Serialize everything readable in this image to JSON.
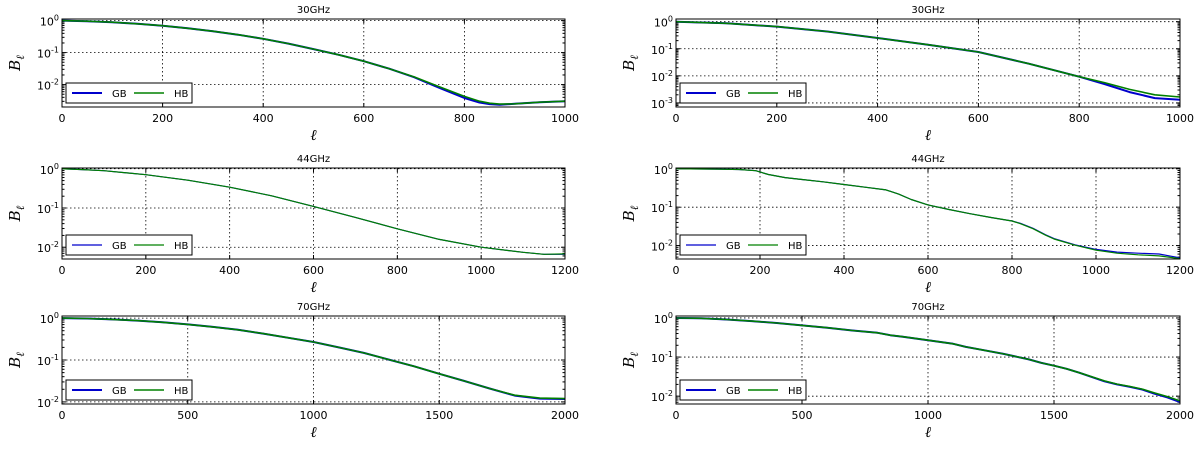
{
  "charts": [
    {
      "type": "line",
      "title": "30GHz",
      "xlabel": "ℓ",
      "ylabel": "Bℓ",
      "xlim": [
        0,
        1000
      ],
      "ylim_log10": [
        -2.7,
        0.05
      ],
      "xticks": [
        0,
        200,
        400,
        600,
        800,
        1000
      ],
      "yticks_log10": [
        -2,
        -1,
        0
      ],
      "ytick_labels": [
        "10^-2",
        "10^-1",
        "10^0"
      ],
      "legend": [
        "GB",
        "HB"
      ],
      "series": [
        {
          "name": "GB",
          "color": "#0000cc",
          "width": 2,
          "x": [
            0,
            50,
            100,
            150,
            200,
            250,
            300,
            350,
            400,
            450,
            500,
            550,
            600,
            650,
            700,
            750,
            800,
            830,
            850,
            870,
            900,
            950,
            1000
          ],
          "log10_y": [
            0,
            -0.02,
            -0.05,
            -0.1,
            -0.16,
            -0.24,
            -0.33,
            -0.44,
            -0.57,
            -0.72,
            -0.89,
            -1.07,
            -1.27,
            -1.5,
            -1.77,
            -2.1,
            -2.42,
            -2.56,
            -2.61,
            -2.63,
            -2.6,
            -2.55,
            -2.52
          ]
        },
        {
          "name": "HB",
          "color": "#008000",
          "width": 1.6,
          "x": [
            0,
            50,
            100,
            150,
            200,
            250,
            300,
            350,
            400,
            450,
            500,
            550,
            600,
            650,
            700,
            750,
            800,
            830,
            850,
            870,
            900,
            950,
            1000
          ],
          "log10_y": [
            0,
            -0.02,
            -0.05,
            -0.1,
            -0.16,
            -0.24,
            -0.33,
            -0.44,
            -0.57,
            -0.72,
            -0.89,
            -1.07,
            -1.27,
            -1.5,
            -1.76,
            -2.07,
            -2.37,
            -2.52,
            -2.58,
            -2.61,
            -2.6,
            -2.55,
            -2.52
          ]
        }
      ]
    },
    {
      "type": "line",
      "title": "30GHz",
      "xlabel": "ℓ",
      "ylabel": "Bℓ",
      "xlim": [
        0,
        1000
      ],
      "ylim_log10": [
        -3.15,
        0.1
      ],
      "xticks": [
        0,
        200,
        400,
        600,
        800,
        1000
      ],
      "yticks_log10": [
        -3,
        -2,
        -1,
        0
      ],
      "ytick_labels": [
        "10^-3",
        "10^-2",
        "10^-1",
        "10^0"
      ],
      "legend": [
        "GB",
        "HB"
      ],
      "series": [
        {
          "name": "GB",
          "color": "#0000cc",
          "width": 2,
          "x": [
            0,
            100,
            200,
            300,
            400,
            500,
            600,
            700,
            800,
            850,
            900,
            950,
            1000
          ],
          "log10_y": [
            0,
            -0.06,
            -0.18,
            -0.36,
            -0.6,
            -0.85,
            -1.12,
            -1.55,
            -2.03,
            -2.3,
            -2.6,
            -2.82,
            -2.88
          ]
        },
        {
          "name": "HB",
          "color": "#008000",
          "width": 1.6,
          "x": [
            0,
            100,
            200,
            300,
            400,
            500,
            600,
            700,
            800,
            850,
            900,
            950,
            1000
          ],
          "log10_y": [
            0,
            -0.06,
            -0.18,
            -0.36,
            -0.6,
            -0.85,
            -1.12,
            -1.55,
            -2.03,
            -2.25,
            -2.5,
            -2.7,
            -2.78
          ]
        }
      ]
    },
    {
      "type": "line",
      "title": "44GHz",
      "xlabel": "ℓ",
      "ylabel": "Bℓ",
      "xlim": [
        0,
        1200
      ],
      "ylim_log10": [
        -2.3,
        0.02
      ],
      "xticks": [
        0,
        200,
        400,
        600,
        800,
        1000,
        1200
      ],
      "yticks_log10": [
        -2,
        -1,
        0
      ],
      "ytick_labels": [
        "10^-2",
        "10^-1",
        "10^0"
      ],
      "legend": [
        "GB",
        "HB"
      ],
      "series": [
        {
          "name": "GB",
          "color": "#0000cc",
          "width": 1.2,
          "x": [
            0,
            50,
            100,
            200,
            300,
            400,
            500,
            600,
            700,
            800,
            900,
            1000,
            1100,
            1150,
            1200
          ],
          "log10_y": [
            0,
            -0.02,
            -0.05,
            -0.15,
            -0.29,
            -0.47,
            -0.69,
            -0.96,
            -1.24,
            -1.53,
            -1.8,
            -2.0,
            -2.13,
            -2.18,
            -2.18
          ]
        },
        {
          "name": "HB",
          "color": "#008000",
          "width": 1.2,
          "x": [
            0,
            50,
            100,
            200,
            300,
            400,
            500,
            600,
            700,
            800,
            900,
            1000,
            1100,
            1150,
            1200
          ],
          "log10_y": [
            0,
            -0.02,
            -0.05,
            -0.15,
            -0.29,
            -0.47,
            -0.69,
            -0.96,
            -1.24,
            -1.53,
            -1.8,
            -2.0,
            -2.13,
            -2.18,
            -2.17
          ]
        }
      ]
    },
    {
      "type": "line",
      "title": "44GHz",
      "xlabel": "ℓ",
      "ylabel": "Bℓ",
      "xlim": [
        0,
        1200
      ],
      "ylim_log10": [
        -2.35,
        0.02
      ],
      "xticks": [
        0,
        200,
        400,
        600,
        800,
        1000,
        1200
      ],
      "yticks_log10": [
        -2,
        -1,
        0
      ],
      "ytick_labels": [
        "10^-2",
        "10^-1",
        "10^0"
      ],
      "legend": [
        "GB",
        "HB"
      ],
      "series": [
        {
          "name": "GB",
          "color": "#0000cc",
          "width": 1.2,
          "x": [
            0,
            100,
            150,
            190,
            220,
            260,
            300,
            350,
            400,
            450,
            500,
            530,
            560,
            600,
            650,
            700,
            750,
            800,
            820,
            850,
            880,
            900,
            950,
            1000,
            1050,
            1100,
            1150,
            1180,
            1200
          ],
          "log10_y": [
            0,
            -0.01,
            -0.02,
            -0.05,
            -0.15,
            -0.23,
            -0.28,
            -0.34,
            -0.41,
            -0.48,
            -0.55,
            -0.66,
            -0.8,
            -0.94,
            -1.06,
            -1.17,
            -1.27,
            -1.36,
            -1.42,
            -1.55,
            -1.72,
            -1.82,
            -1.98,
            -2.1,
            -2.17,
            -2.2,
            -2.22,
            -2.28,
            -2.32
          ]
        },
        {
          "name": "HB",
          "color": "#008000",
          "width": 1.2,
          "x": [
            0,
            100,
            150,
            190,
            220,
            260,
            300,
            350,
            400,
            450,
            500,
            530,
            560,
            600,
            650,
            700,
            750,
            800,
            820,
            850,
            880,
            900,
            950,
            1000,
            1050,
            1100,
            1150,
            1180,
            1200
          ],
          "log10_y": [
            0,
            -0.01,
            -0.02,
            -0.05,
            -0.15,
            -0.23,
            -0.28,
            -0.34,
            -0.41,
            -0.48,
            -0.55,
            -0.66,
            -0.8,
            -0.94,
            -1.06,
            -1.17,
            -1.27,
            -1.36,
            -1.43,
            -1.56,
            -1.73,
            -1.83,
            -1.99,
            -2.12,
            -2.2,
            -2.24,
            -2.27,
            -2.31,
            -2.34
          ]
        }
      ]
    },
    {
      "type": "line",
      "title": "70GHz",
      "xlabel": "ℓ",
      "ylabel": "Bℓ",
      "xlim": [
        0,
        2000
      ],
      "ylim_log10": [
        -2.05,
        0.05
      ],
      "xticks": [
        0,
        500,
        1000,
        1500,
        2000
      ],
      "yticks_log10": [
        -2,
        -1,
        0
      ],
      "ytick_labels": [
        "10^-2",
        "10^-1",
        "10^0"
      ],
      "legend": [
        "GB",
        "HB"
      ],
      "series": [
        {
          "name": "GB",
          "color": "#0000cc",
          "width": 2,
          "x": [
            0,
            100,
            200,
            300,
            400,
            500,
            600,
            700,
            800,
            900,
            1000,
            1100,
            1200,
            1300,
            1400,
            1500,
            1600,
            1700,
            1800,
            1900,
            2000
          ],
          "log10_y": [
            0,
            -0.01,
            -0.03,
            -0.06,
            -0.1,
            -0.15,
            -0.21,
            -0.28,
            -0.37,
            -0.47,
            -0.57,
            -0.7,
            -0.83,
            -0.99,
            -1.15,
            -1.33,
            -1.5,
            -1.68,
            -1.85,
            -1.92,
            -1.93
          ]
        },
        {
          "name": "HB",
          "color": "#008000",
          "width": 1.6,
          "x": [
            0,
            100,
            200,
            300,
            400,
            500,
            600,
            700,
            800,
            900,
            1000,
            1100,
            1200,
            1300,
            1400,
            1500,
            1600,
            1700,
            1800,
            1900,
            2000
          ],
          "log10_y": [
            0,
            -0.01,
            -0.03,
            -0.06,
            -0.1,
            -0.15,
            -0.21,
            -0.28,
            -0.37,
            -0.47,
            -0.57,
            -0.7,
            -0.83,
            -0.99,
            -1.15,
            -1.33,
            -1.5,
            -1.68,
            -1.84,
            -1.91,
            -1.92
          ]
        }
      ]
    },
    {
      "type": "line",
      "title": "70GHz",
      "xlabel": "ℓ",
      "ylabel": "Bℓ",
      "xlim": [
        0,
        2000
      ],
      "ylim_log10": [
        -2.2,
        0.05
      ],
      "xticks": [
        0,
        500,
        1000,
        1500,
        2000
      ],
      "yticks_log10": [
        -2,
        -1,
        0
      ],
      "ytick_labels": [
        "10^-2",
        "10^-1",
        "10^0"
      ],
      "legend": [
        "GB",
        "HB"
      ],
      "series": [
        {
          "name": "GB",
          "color": "#0000cc",
          "width": 2,
          "x": [
            0,
            100,
            200,
            300,
            400,
            500,
            600,
            700,
            800,
            850,
            900,
            1000,
            1100,
            1150,
            1200,
            1300,
            1400,
            1450,
            1500,
            1550,
            1600,
            1700,
            1750,
            1800,
            1850,
            1900,
            1950,
            2000
          ],
          "log10_y": [
            0,
            -0.01,
            -0.04,
            -0.08,
            -0.13,
            -0.19,
            -0.25,
            -0.32,
            -0.38,
            -0.44,
            -0.48,
            -0.57,
            -0.66,
            -0.74,
            -0.8,
            -0.92,
            -1.06,
            -1.15,
            -1.22,
            -1.3,
            -1.4,
            -1.62,
            -1.7,
            -1.76,
            -1.83,
            -1.94,
            -2.03,
            -2.15
          ]
        },
        {
          "name": "HB",
          "color": "#008000",
          "width": 1.6,
          "x": [
            0,
            100,
            200,
            300,
            400,
            500,
            600,
            700,
            800,
            850,
            900,
            1000,
            1100,
            1150,
            1200,
            1300,
            1400,
            1450,
            1500,
            1550,
            1600,
            1700,
            1750,
            1800,
            1850,
            1900,
            1950,
            2000
          ],
          "log10_y": [
            0,
            -0.01,
            -0.04,
            -0.08,
            -0.13,
            -0.19,
            -0.25,
            -0.32,
            -0.38,
            -0.44,
            -0.48,
            -0.57,
            -0.66,
            -0.74,
            -0.8,
            -0.92,
            -1.06,
            -1.15,
            -1.22,
            -1.3,
            -1.4,
            -1.61,
            -1.69,
            -1.75,
            -1.82,
            -1.92,
            -2.01,
            -2.12
          ]
        }
      ]
    }
  ]
}
